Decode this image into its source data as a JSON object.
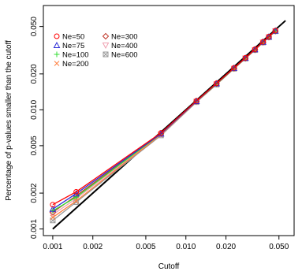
{
  "chart_data": {
    "type": "line",
    "title": "",
    "xlabel": "Cutoff",
    "ylabel": "Percentage of p-values smaller than the cutoff",
    "xscale": "log",
    "yscale": "log",
    "xlim": [
      0.00085,
      0.065
    ],
    "ylim": [
      0.00088,
      0.075
    ],
    "x_ticks": [
      0.001,
      0.002,
      0.005,
      0.01,
      0.02,
      0.05
    ],
    "x_tick_labels": [
      "0.001",
      "0.002",
      "0.005",
      "0.010",
      "0.020",
      "0.050"
    ],
    "y_ticks": [
      0.001,
      0.002,
      0.005,
      0.01,
      0.02,
      0.05
    ],
    "y_tick_labels": [
      "0.001",
      "0.002",
      "0.005",
      "0.010",
      "0.020",
      "0.050"
    ],
    "grid": false,
    "legend_position": "top-left",
    "reference_line": {
      "x": [
        0.001,
        0.056
      ],
      "y": [
        0.001,
        0.056
      ],
      "color": "#000000"
    },
    "x": [
      0.001,
      0.0015,
      0.0065,
      0.012,
      0.017,
      0.023,
      0.028,
      0.033,
      0.038,
      0.042,
      0.047
    ],
    "series": [
      {
        "name": "Ne=50",
        "marker": "circle",
        "color": "#ff0000",
        "values": [
          0.0016,
          0.00205,
          0.0064,
          0.0119,
          0.0167,
          0.0225,
          0.0273,
          0.0322,
          0.0372,
          0.0412,
          0.0462
        ]
      },
      {
        "name": "Ne=75",
        "marker": "triangle-up",
        "color": "#2b2bd6",
        "values": [
          0.00147,
          0.00198,
          0.0063,
          0.0118,
          0.0166,
          0.0224,
          0.0272,
          0.0321,
          0.0371,
          0.041,
          0.046
        ]
      },
      {
        "name": "Ne=100",
        "marker": "plus",
        "color": "#33dd33",
        "values": [
          0.00142,
          0.00185,
          0.0063,
          0.0118,
          0.0165,
          0.0223,
          0.0271,
          0.032,
          0.037,
          0.0409,
          0.0459
        ]
      },
      {
        "name": "Ne=200",
        "marker": "x",
        "color": "#ff8040",
        "values": [
          0.00125,
          0.00172,
          0.0062,
          0.0117,
          0.0164,
          0.0222,
          0.027,
          0.0318,
          0.0368,
          0.0407,
          0.0457
        ]
      },
      {
        "name": "Ne=300",
        "marker": "diamond",
        "color": "#c0392b",
        "values": [
          0.00138,
          0.0019,
          0.0063,
          0.0118,
          0.0165,
          0.0223,
          0.0271,
          0.0319,
          0.0369,
          0.0408,
          0.0458
        ]
      },
      {
        "name": "Ne=400",
        "marker": "triangle-down",
        "color": "#f0a0b0",
        "values": [
          0.00132,
          0.0018,
          0.0062,
          0.0117,
          0.0164,
          0.0222,
          0.027,
          0.0318,
          0.0368,
          0.0407,
          0.0457
        ]
      },
      {
        "name": "Ne=600",
        "marker": "square-x",
        "color": "#999999",
        "values": [
          0.00118,
          0.00168,
          0.0061,
          0.0116,
          0.0163,
          0.0221,
          0.0269,
          0.0317,
          0.0367,
          0.0406,
          0.0456
        ]
      }
    ]
  }
}
